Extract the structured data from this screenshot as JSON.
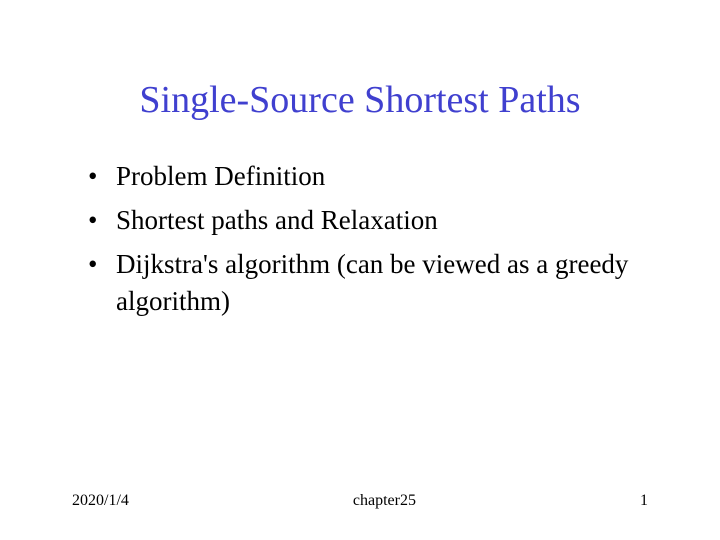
{
  "slide": {
    "title": "Single-Source Shortest Paths",
    "title_color": "#4040cf",
    "title_fontsize": 38,
    "bullets": [
      "Problem Definition",
      "Shortest paths and Relaxation",
      "Dijkstra's algorithm (can be viewed as a greedy algorithm)"
    ],
    "bullet_color": "#000000",
    "bullet_fontsize": 27,
    "background_color": "#ffffff"
  },
  "footer": {
    "date": "2020/1/4",
    "chapter": "chapter25",
    "page": "1",
    "fontsize": 16,
    "color": "#000000"
  }
}
